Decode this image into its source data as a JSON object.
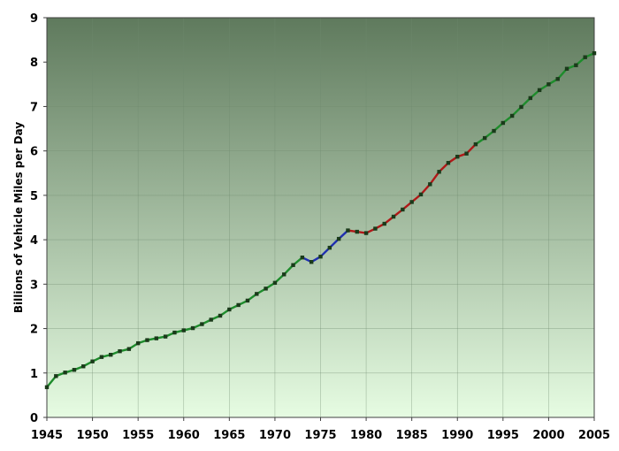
{
  "chart_data": {
    "type": "line",
    "title": "",
    "xlabel": "",
    "ylabel": "Billions of Vehicle Miles per Day",
    "xlim": [
      1945,
      2005
    ],
    "ylim": [
      0,
      9
    ],
    "x_ticks": [
      1945,
      1950,
      1955,
      1960,
      1965,
      1970,
      1975,
      1980,
      1985,
      1990,
      1995,
      2000,
      2005
    ],
    "y_ticks": [
      0,
      1,
      2,
      3,
      4,
      5,
      6,
      7,
      8,
      9
    ],
    "grid": true,
    "legend": "none",
    "background_gradient": {
      "top": "#5f7a5d",
      "bottom": "#e6fce2"
    },
    "marker_color": "#1a3a1a",
    "series": [
      {
        "color": "#1e8c2c",
        "points": [
          [
            1945,
            0.68
          ],
          [
            1946,
            0.93
          ],
          [
            1947,
            1.01
          ],
          [
            1948,
            1.07
          ],
          [
            1949,
            1.15
          ],
          [
            1950,
            1.26
          ],
          [
            1951,
            1.36
          ],
          [
            1952,
            1.41
          ],
          [
            1953,
            1.49
          ],
          [
            1954,
            1.54
          ],
          [
            1955,
            1.67
          ],
          [
            1956,
            1.74
          ],
          [
            1957,
            1.78
          ],
          [
            1958,
            1.82
          ],
          [
            1959,
            1.91
          ],
          [
            1960,
            1.96
          ],
          [
            1961,
            2.01
          ],
          [
            1962,
            2.1
          ],
          [
            1963,
            2.2
          ],
          [
            1964,
            2.29
          ],
          [
            1965,
            2.43
          ],
          [
            1966,
            2.53
          ],
          [
            1967,
            2.63
          ],
          [
            1968,
            2.78
          ],
          [
            1969,
            2.9
          ],
          [
            1970,
            3.03
          ],
          [
            1971,
            3.22
          ],
          [
            1972,
            3.43
          ],
          [
            1973,
            3.6
          ]
        ]
      },
      {
        "color": "#1f2fb0",
        "points": [
          [
            1973,
            3.6
          ],
          [
            1974,
            3.5
          ],
          [
            1975,
            3.62
          ],
          [
            1976,
            3.82
          ],
          [
            1977,
            4.02
          ],
          [
            1978,
            4.21
          ]
        ]
      },
      {
        "color": "#b01818",
        "points": [
          [
            1978,
            4.21
          ],
          [
            1979,
            4.18
          ],
          [
            1980,
            4.15
          ],
          [
            1981,
            4.25
          ],
          [
            1982,
            4.36
          ],
          [
            1983,
            4.52
          ],
          [
            1984,
            4.68
          ],
          [
            1985,
            4.85
          ],
          [
            1986,
            5.02
          ],
          [
            1987,
            5.25
          ],
          [
            1988,
            5.53
          ],
          [
            1989,
            5.73
          ],
          [
            1990,
            5.87
          ],
          [
            1991,
            5.94
          ],
          [
            1992,
            6.15
          ]
        ]
      },
      {
        "color": "#1e8c2c",
        "points": [
          [
            1992,
            6.15
          ],
          [
            1993,
            6.29
          ],
          [
            1994,
            6.45
          ],
          [
            1995,
            6.63
          ],
          [
            1996,
            6.79
          ],
          [
            1997,
            6.99
          ],
          [
            1998,
            7.19
          ],
          [
            1999,
            7.37
          ],
          [
            2000,
            7.5
          ],
          [
            2001,
            7.62
          ],
          [
            2002,
            7.85
          ],
          [
            2003,
            7.93
          ],
          [
            2004,
            8.11
          ],
          [
            2005,
            8.2
          ]
        ]
      }
    ]
  }
}
